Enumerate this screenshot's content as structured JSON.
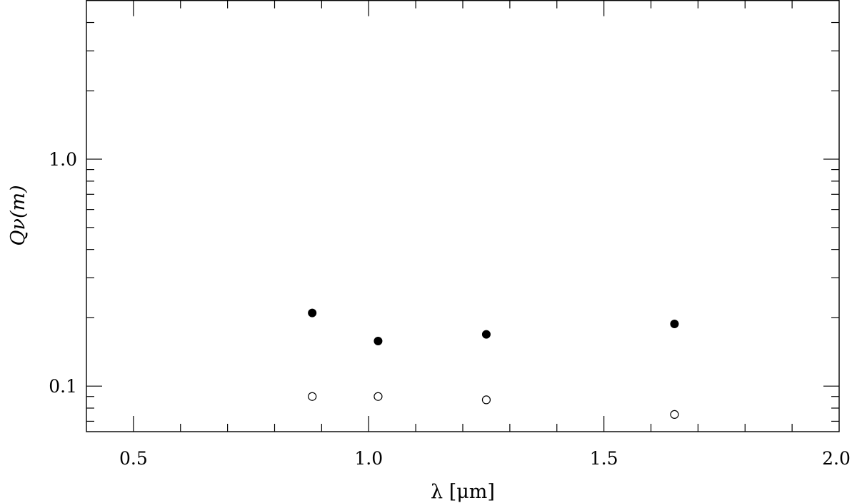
{
  "chart_data": {
    "type": "scatter",
    "title": "",
    "xlabel": "λ [μm]",
    "ylabel": "Qν(m)",
    "xlim": [
      0.4,
      2.0
    ],
    "ylim": [
      0.063,
      5.0
    ],
    "yscale": "log",
    "grid": false,
    "x_ticks": [
      {
        "value": 0.5,
        "label": "0.5"
      },
      {
        "value": 1.0,
        "label": "1.0"
      },
      {
        "value": 1.5,
        "label": "1.5"
      },
      {
        "value": 2.0,
        "label": "2.0"
      }
    ],
    "x_minor_step": 0.1,
    "y_ticks": [
      {
        "value": 0.1,
        "label": "0.1"
      },
      {
        "value": 1.0,
        "label": "1.0"
      }
    ],
    "y_minor": [
      0.07,
      0.08,
      0.09,
      0.2,
      0.3,
      0.4,
      0.5,
      0.6,
      0.7,
      0.8,
      0.9,
      2,
      3,
      4
    ],
    "series": [
      {
        "marker": "filled-circle",
        "color": "#000000",
        "x": [
          0.88,
          1.02,
          1.25,
          1.65
        ],
        "y": [
          0.21,
          0.158,
          0.169,
          0.188
        ]
      },
      {
        "marker": "open-circle",
        "color": "#000000",
        "x": [
          0.88,
          1.02,
          1.25,
          1.65
        ],
        "y": [
          0.09,
          0.09,
          0.087,
          0.075
        ]
      }
    ]
  }
}
